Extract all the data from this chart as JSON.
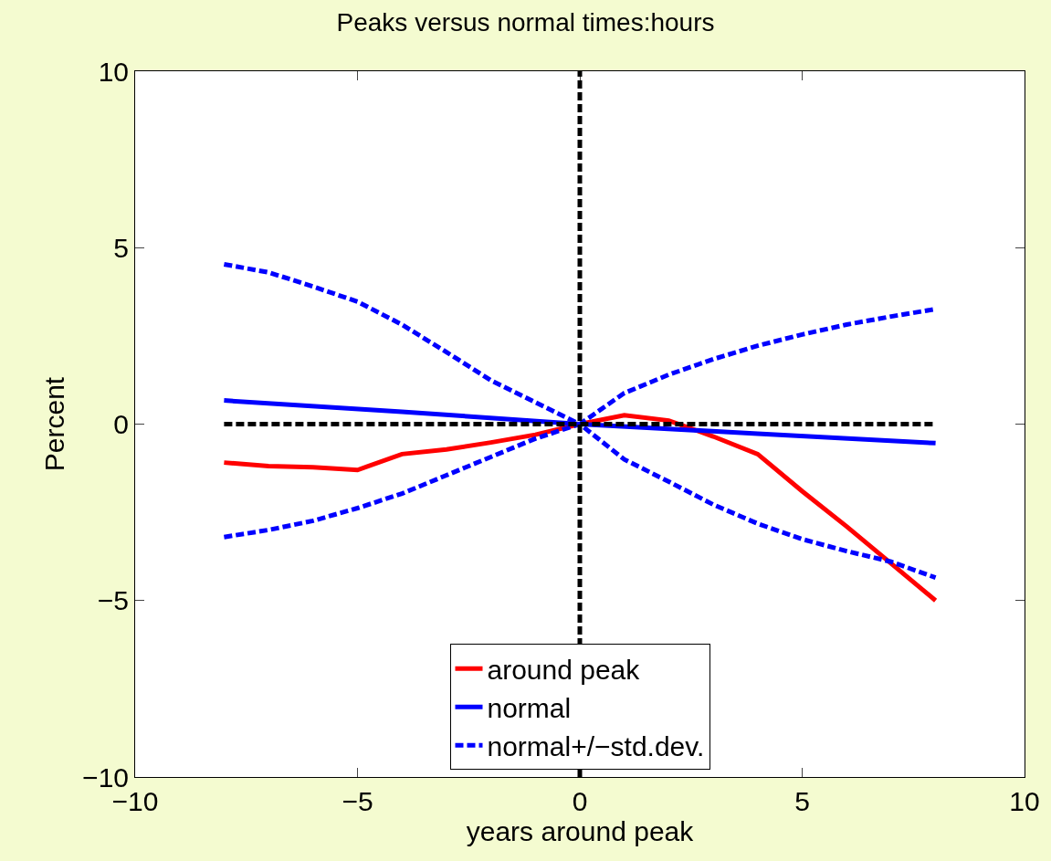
{
  "chart_data": {
    "type": "line",
    "title": "Peaks versus normal times:hours",
    "xlabel": "years around peak",
    "ylabel": "Percent",
    "xlim": [
      -10,
      10
    ],
    "ylim": [
      -10,
      10
    ],
    "xticks": [
      {
        "value": -10,
        "label": "−10"
      },
      {
        "value": -5,
        "label": "−5"
      },
      0,
      5,
      10
    ],
    "yticks": [
      {
        "value": -10,
        "label": "−10"
      },
      {
        "value": -5,
        "label": "−5"
      },
      0,
      5,
      10
    ],
    "legend": "bottom",
    "marker": "none",
    "series": [
      {
        "name": "around peak",
        "color": "#ff0000",
        "line_style": "solid",
        "x": [
          -8,
          -7,
          -6,
          -5,
          -4,
          -3,
          -2,
          -1,
          0,
          1,
          2,
          3,
          4,
          5,
          6,
          7,
          8
        ],
        "values": [
          -1.09,
          -1.19,
          -1.22,
          -1.3,
          -0.85,
          -0.72,
          -0.52,
          -0.3,
          0,
          0.25,
          0.1,
          -0.35,
          -0.85,
          -1.9,
          -2.9,
          -3.95,
          -5.0
        ]
      },
      {
        "name": "normal",
        "color": "#0000ff",
        "line_style": "solid",
        "x": [
          -8,
          -4,
          0,
          4,
          8
        ],
        "values": [
          0.67,
          0.35,
          0,
          -0.27,
          -0.54
        ]
      },
      {
        "name": "normal+/−std.dev.",
        "color": "#0000ff",
        "line_style": "dashed",
        "x": [
          -8,
          -7,
          -6,
          -5,
          -4,
          -3,
          -2,
          -1,
          0,
          1,
          2,
          3,
          4,
          5,
          6,
          7,
          8
        ],
        "values": [
          4.53,
          4.3,
          3.9,
          3.47,
          2.82,
          2.04,
          1.24,
          0.62,
          0,
          0.88,
          1.4,
          1.84,
          2.22,
          2.54,
          2.82,
          3.05,
          3.26
        ]
      },
      {
        "color": "#0000ff",
        "line_style": "dashed",
        "x": [
          -8,
          -7,
          -6,
          -5,
          -4,
          -3,
          -2,
          -1,
          0,
          1,
          2,
          3,
          4,
          5,
          6,
          7,
          8
        ],
        "values": [
          -3.2,
          -3.0,
          -2.74,
          -2.38,
          -1.97,
          -1.45,
          -0.93,
          -0.41,
          0,
          -1.0,
          -1.63,
          -2.28,
          -2.82,
          -3.26,
          -3.6,
          -3.9,
          -4.35
        ]
      },
      {
        "color": "#000000",
        "line_style": "dashed",
        "x": [
          -8,
          8
        ],
        "values": [
          0,
          0
        ]
      }
    ],
    "ref_lines": [
      {
        "axis": "x",
        "value": 0,
        "color": "#000000",
        "line_style": "dashed"
      }
    ]
  }
}
